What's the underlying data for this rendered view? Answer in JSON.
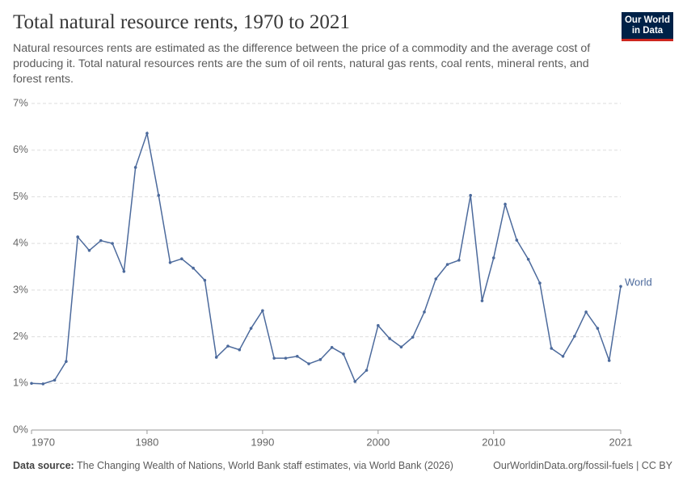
{
  "header": {
    "logo": [
      "Our World",
      "in Data"
    ]
  },
  "chart_data": {
    "type": "line",
    "title": "Total natural resource rents, 1970 to 2021",
    "subtitle": "Natural resources rents are estimated as the difference between the price of a commodity and the average cost of producing it. Total natural resources rents are the sum of oil rents, natural gas rents, coal rents, mineral rents, and forest rents.",
    "x": [
      1970,
      1971,
      1972,
      1973,
      1974,
      1975,
      1976,
      1977,
      1978,
      1979,
      1980,
      1981,
      1982,
      1983,
      1984,
      1985,
      1986,
      1987,
      1988,
      1989,
      1990,
      1991,
      1992,
      1993,
      1994,
      1995,
      1996,
      1997,
      1998,
      1999,
      2000,
      2001,
      2002,
      2003,
      2004,
      2005,
      2006,
      2007,
      2008,
      2009,
      2010,
      2011,
      2012,
      2013,
      2014,
      2015,
      2016,
      2017,
      2018,
      2019,
      2020,
      2021
    ],
    "series": [
      {
        "name": "World",
        "color": "#4c6a9c",
        "values": [
          1.0,
          0.99,
          1.07,
          1.47,
          4.14,
          3.85,
          4.06,
          4.0,
          3.4,
          5.63,
          6.36,
          5.03,
          3.59,
          3.67,
          3.47,
          3.21,
          1.56,
          1.8,
          1.72,
          2.18,
          2.56,
          1.54,
          1.54,
          1.58,
          1.42,
          1.51,
          1.77,
          1.63,
          1.04,
          1.28,
          2.24,
          1.96,
          1.78,
          1.99,
          2.53,
          3.24,
          3.55,
          3.64,
          5.03,
          2.77,
          3.69,
          4.84,
          4.07,
          3.66,
          3.15,
          1.75,
          1.58,
          2.01,
          2.53,
          2.18,
          1.49,
          3.08
        ]
      }
    ],
    "xlim": [
      1970,
      2021
    ],
    "xticks": [
      1970,
      1980,
      1990,
      2000,
      2010,
      2021
    ],
    "ylim": [
      0,
      7
    ],
    "yticks": [
      {
        "value": 0,
        "label": "0%"
      },
      {
        "value": 1,
        "label": "1%"
      },
      {
        "value": 2,
        "label": "2%"
      },
      {
        "value": 3,
        "label": "3%"
      },
      {
        "value": 4,
        "label": "4%"
      },
      {
        "value": 5,
        "label": "5%"
      },
      {
        "value": 6,
        "label": "6%"
      },
      {
        "value": 7,
        "label": "7%"
      }
    ],
    "grid": true,
    "source_label": "Data source:",
    "source": "The Changing Wealth of Nations, World Bank staff estimates, via World Bank (2026)",
    "footer_right": "OurWorldinData.org/fossil-fuels | CC BY"
  }
}
